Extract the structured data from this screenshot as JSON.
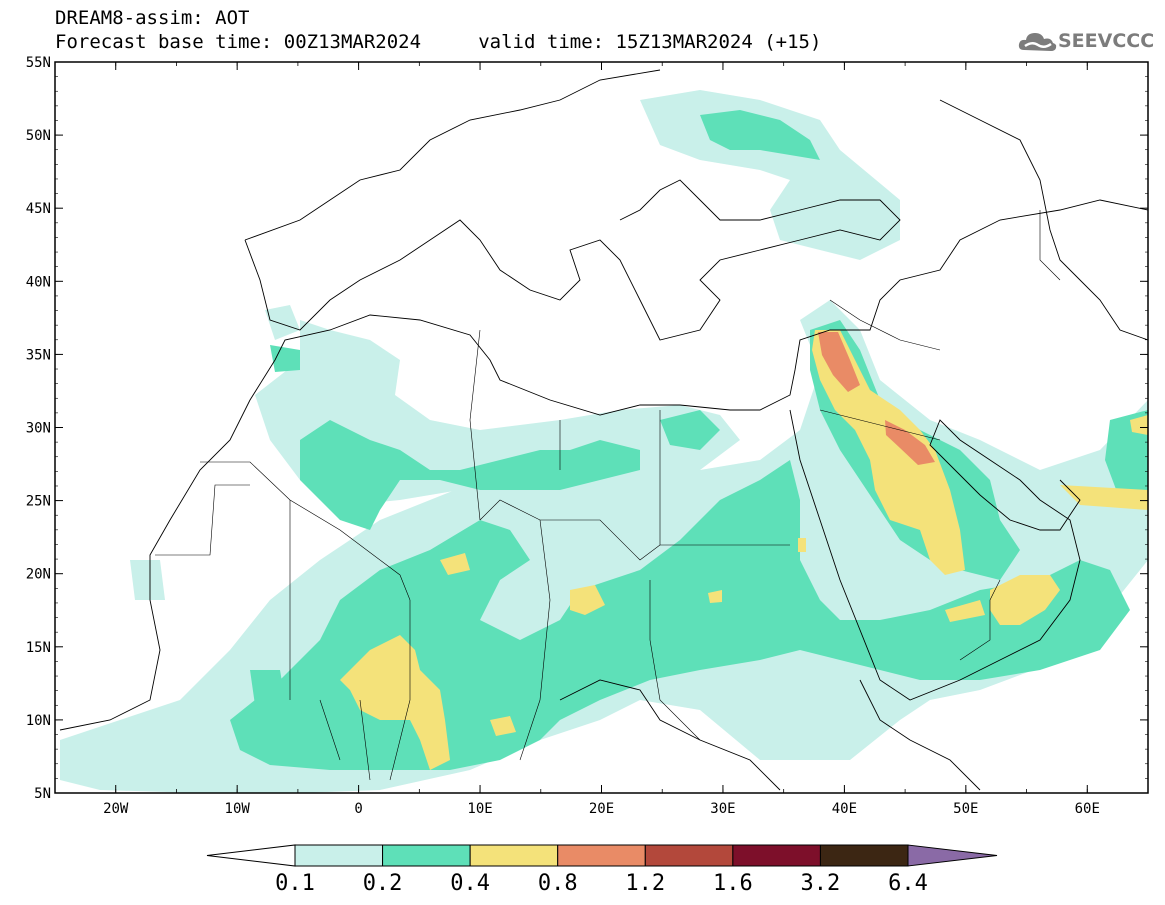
{
  "header": {
    "line1": "DREAM8-assim: AOT",
    "line2": "Forecast base time: 00Z13MAR2024     valid time: 15Z13MAR2024 (+15)"
  },
  "logo": {
    "text": "SEEVCCC",
    "icon": "cloud-icon"
  },
  "map": {
    "lon_range": [
      -25,
      65
    ],
    "lat_range": [
      5,
      55
    ],
    "lat_ticks": [
      "55N",
      "50N",
      "45N",
      "40N",
      "35N",
      "30N",
      "25N",
      "20N",
      "15N",
      "10N",
      "5N"
    ],
    "lon_ticks": [
      "20W",
      "10W",
      "0",
      "10E",
      "20E",
      "30E",
      "40E",
      "50E",
      "60E"
    ]
  },
  "colorbar": {
    "levels": [
      "0.1",
      "0.2",
      "0.4",
      "0.8",
      "1.2",
      "1.6",
      "3.2",
      "6.4"
    ],
    "colors": [
      "#c9f0ea",
      "#5ee0b8",
      "#f4e27a",
      "#e98b66",
      "#b3483b",
      "#7d0f2a",
      "#3c2613",
      "#8a6aa6"
    ],
    "under_color": "#ffffff"
  }
}
